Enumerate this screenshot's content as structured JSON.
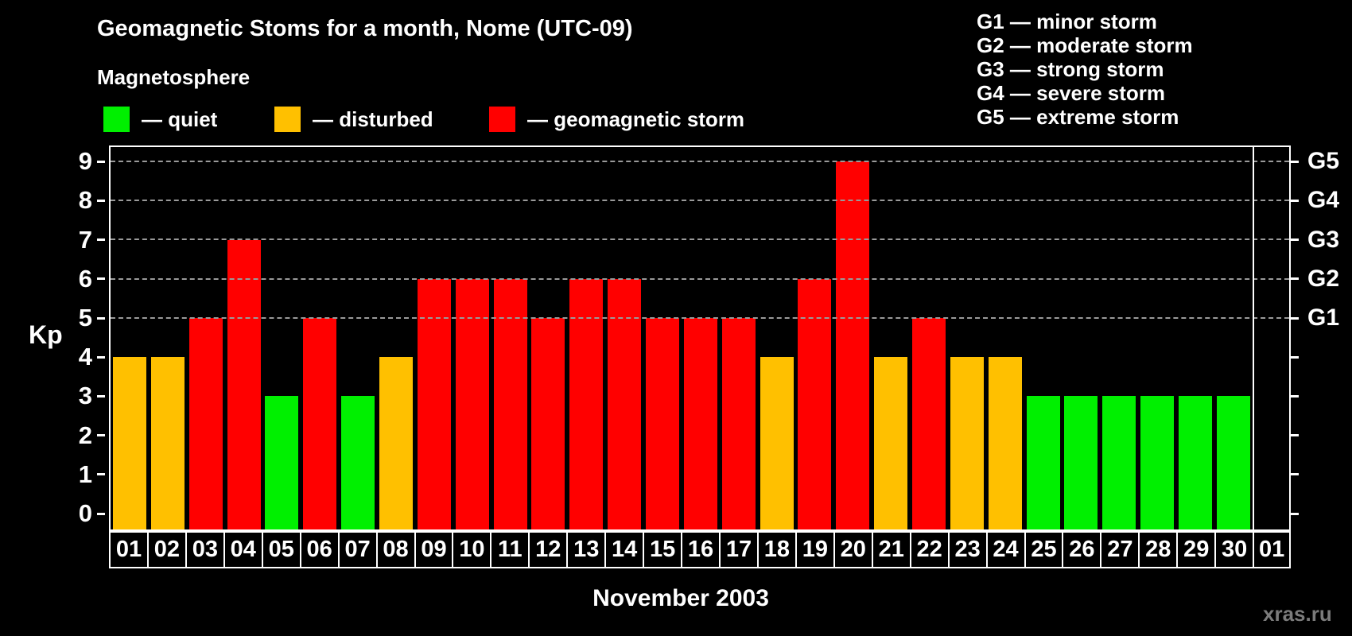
{
  "header": {
    "title": "Geomagnetic Stoms for a month, Nome (UTC-09)",
    "legend_title": "Magnetosphere",
    "legend": [
      {
        "key": "quiet",
        "label": "— quiet",
        "color": "#00f000"
      },
      {
        "key": "disturbed",
        "label": "— disturbed",
        "color": "#ffc000"
      },
      {
        "key": "storm",
        "label": "— geomagnetic storm",
        "color": "#ff0000"
      }
    ],
    "g_scale_legend": [
      "G1 — minor storm",
      "G2 — moderate storm",
      "G3 — strong storm",
      "G4 — severe storm",
      "G5 — extreme storm"
    ]
  },
  "chart_data": {
    "type": "bar",
    "title": "Geomagnetic Stoms for a month, Nome (UTC-09)",
    "xlabel": "November 2003",
    "ylabel": "Kp",
    "ylim": [
      0,
      9
    ],
    "yticks": [
      0,
      1,
      2,
      3,
      4,
      5,
      6,
      7,
      8,
      9
    ],
    "gridlines_at": [
      5,
      6,
      7,
      8,
      9
    ],
    "grid": "dashed, only at storm levels G1-G5",
    "legend_position": "top-left",
    "right_axis_labels": [
      {
        "label": "G1",
        "kp": 5
      },
      {
        "label": "G2",
        "kp": 6
      },
      {
        "label": "G3",
        "kp": 7
      },
      {
        "label": "G4",
        "kp": 8
      },
      {
        "label": "G5",
        "kp": 9
      }
    ],
    "categories": [
      "01",
      "02",
      "03",
      "04",
      "05",
      "06",
      "07",
      "08",
      "09",
      "10",
      "11",
      "12",
      "13",
      "14",
      "15",
      "16",
      "17",
      "18",
      "19",
      "20",
      "21",
      "22",
      "23",
      "24",
      "25",
      "26",
      "27",
      "28",
      "29",
      "30",
      "01"
    ],
    "values": [
      4,
      4,
      5,
      7,
      3,
      5,
      3,
      4,
      6,
      6,
      6,
      5,
      6,
      6,
      5,
      5,
      5,
      4,
      6,
      9,
      4,
      5,
      4,
      4,
      3,
      3,
      3,
      3,
      3,
      3,
      null
    ],
    "statuses": [
      "disturbed",
      "disturbed",
      "storm",
      "storm",
      "quiet",
      "storm",
      "quiet",
      "disturbed",
      "storm",
      "storm",
      "storm",
      "storm",
      "storm",
      "storm",
      "storm",
      "storm",
      "storm",
      "disturbed",
      "storm",
      "storm",
      "disturbed",
      "storm",
      "disturbed",
      "disturbed",
      "quiet",
      "quiet",
      "quiet",
      "quiet",
      "quiet",
      "quiet",
      null
    ],
    "status_colors": {
      "quiet": "#00f000",
      "disturbed": "#ffc000",
      "storm": "#ff0000"
    }
  },
  "footer": {
    "xlabel": "November 2003",
    "watermark": "xras.ru"
  }
}
